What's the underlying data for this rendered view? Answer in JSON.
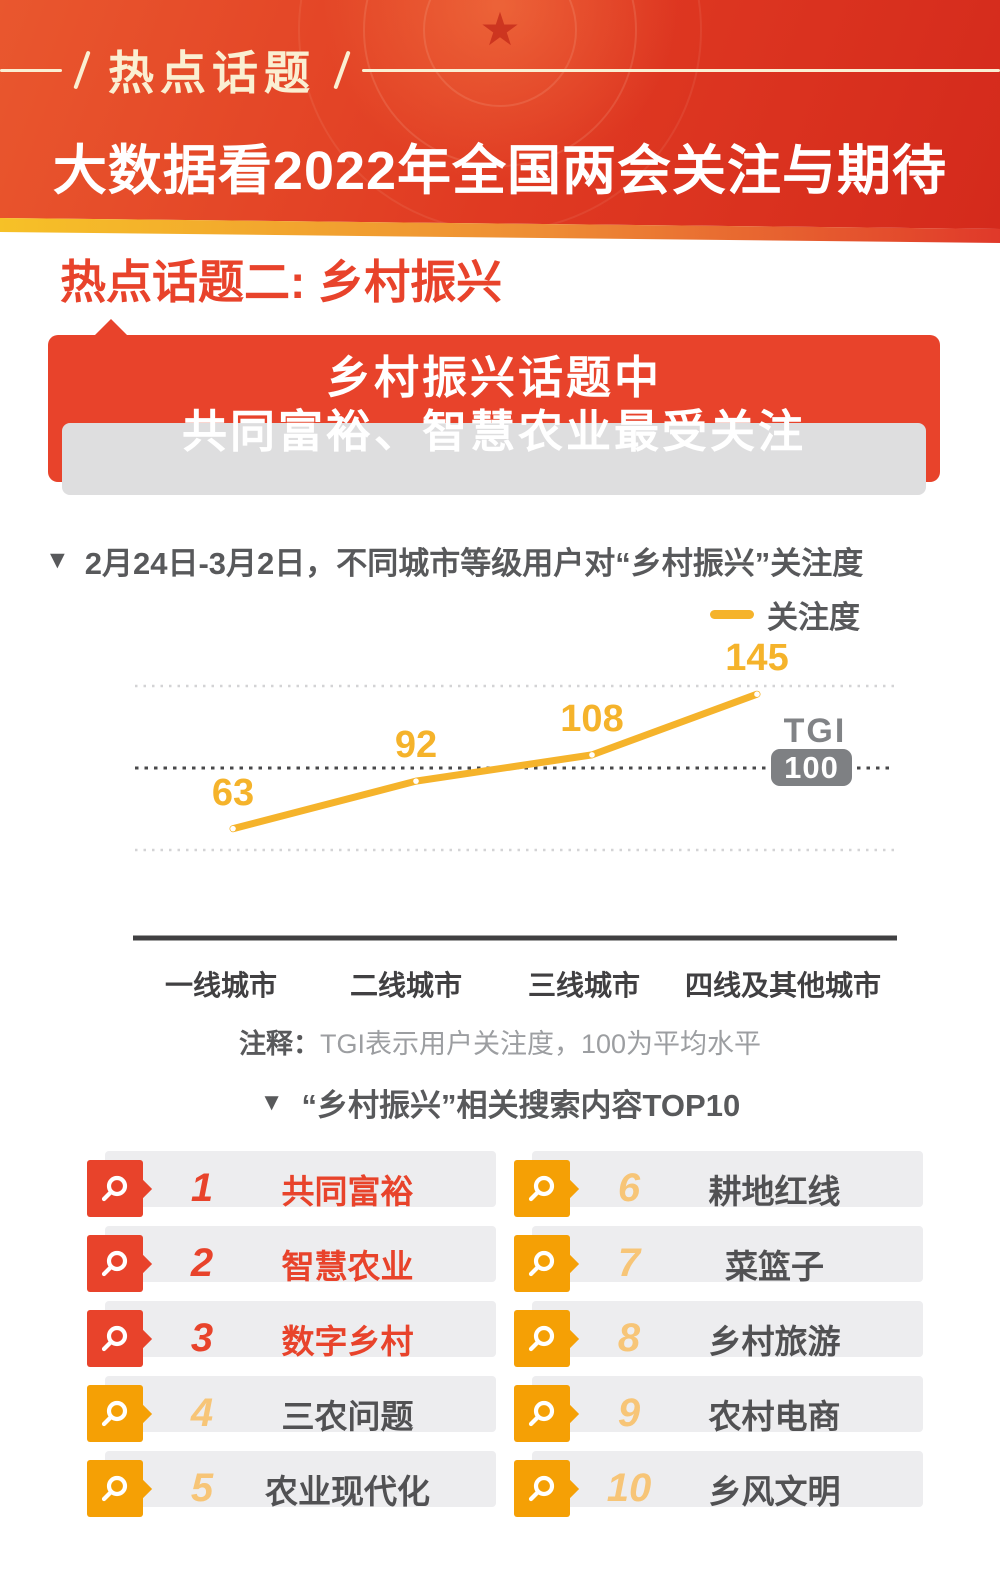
{
  "icons": {
    "marker": "▼",
    "star": "★"
  },
  "colors": {
    "accent_red": "#E8432B",
    "accent_orange": "#F5A005",
    "amber_rank": "#F7C577",
    "line_yellow": "#F5B32B",
    "header_red": "#E03A22",
    "cream": "#FAEFD2",
    "dark_text": "#58595B"
  },
  "header": {
    "badge": "热点话题",
    "title": "大数据看2022年全国两会关注与期待"
  },
  "topic": {
    "heading": "热点话题二: 乡村振兴",
    "banner_line1": "乡村振兴话题中",
    "banner_line2": "共同富裕、智慧农业最受关注"
  },
  "chart_section": {
    "title": "2月24日-3月2日，不同城市等级用户对“乡村振兴”关注度",
    "legend_label": "关注度",
    "tgi_label": "TGI",
    "tgi_value": "100",
    "note_prefix": "注释：",
    "note_text": "TGI表示用户关注度，100为平均水平"
  },
  "chart_data": {
    "type": "line",
    "categories": [
      "一线城市",
      "二线城市",
      "三线城市",
      "四线及其他城市"
    ],
    "series": [
      {
        "name": "关注度",
        "values": [
          63,
          92,
          108,
          145
        ]
      }
    ],
    "baseline": {
      "label": "TGI",
      "value": 100
    },
    "gridline_values": [
      150,
      50
    ],
    "ylim": [
      0,
      200
    ],
    "title": "2月24日-3月2日，不同城市等级用户对“乡村振兴”关注度",
    "xlabel": "",
    "ylabel": "TGI",
    "line_color": "#F5B32B",
    "grid": "dotted",
    "legend_position": "top-right"
  },
  "top10": {
    "title": "“乡村振兴”相关搜索内容TOP10",
    "items": [
      {
        "rank": "1",
        "keyword": "共同富裕",
        "highlight": true
      },
      {
        "rank": "2",
        "keyword": "智慧农业",
        "highlight": true
      },
      {
        "rank": "3",
        "keyword": "数字乡村",
        "highlight": true
      },
      {
        "rank": "4",
        "keyword": "三农问题",
        "highlight": false
      },
      {
        "rank": "5",
        "keyword": "农业现代化",
        "highlight": false
      },
      {
        "rank": "6",
        "keyword": "耕地红线",
        "highlight": false
      },
      {
        "rank": "7",
        "keyword": "菜篮子",
        "highlight": false
      },
      {
        "rank": "8",
        "keyword": "乡村旅游",
        "highlight": false
      },
      {
        "rank": "9",
        "keyword": "农村电商",
        "highlight": false
      },
      {
        "rank": "10",
        "keyword": "乡风文明",
        "highlight": false
      }
    ]
  }
}
